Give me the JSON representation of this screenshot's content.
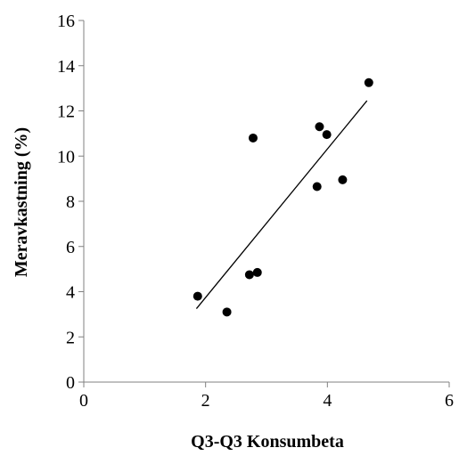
{
  "chart_data": {
    "type": "scatter",
    "title": "",
    "xlabel": "Q3-Q3 Konsumbeta",
    "ylabel": "Meravkastning (%)",
    "xlim": [
      0,
      6
    ],
    "ylim": [
      0,
      16
    ],
    "xticks": [
      0,
      2,
      4,
      6
    ],
    "yticks": [
      0,
      2,
      4,
      6,
      8,
      10,
      12,
      14,
      16
    ],
    "grid": false,
    "legend": "none",
    "marker_color": "#000000",
    "series": [
      {
        "points": [
          {
            "x": 1.87,
            "y": 3.8
          },
          {
            "x": 2.35,
            "y": 3.1
          },
          {
            "x": 2.72,
            "y": 4.75
          },
          {
            "x": 2.85,
            "y": 4.85
          },
          {
            "x": 2.78,
            "y": 10.8
          },
          {
            "x": 3.83,
            "y": 8.65
          },
          {
            "x": 3.87,
            "y": 11.3
          },
          {
            "x": 3.99,
            "y": 10.95
          },
          {
            "x": 4.25,
            "y": 8.95
          },
          {
            "x": 4.68,
            "y": 13.25
          }
        ]
      }
    ],
    "trendline": {
      "x": [
        1.85,
        4.65
      ],
      "y": [
        3.25,
        12.45
      ]
    }
  }
}
